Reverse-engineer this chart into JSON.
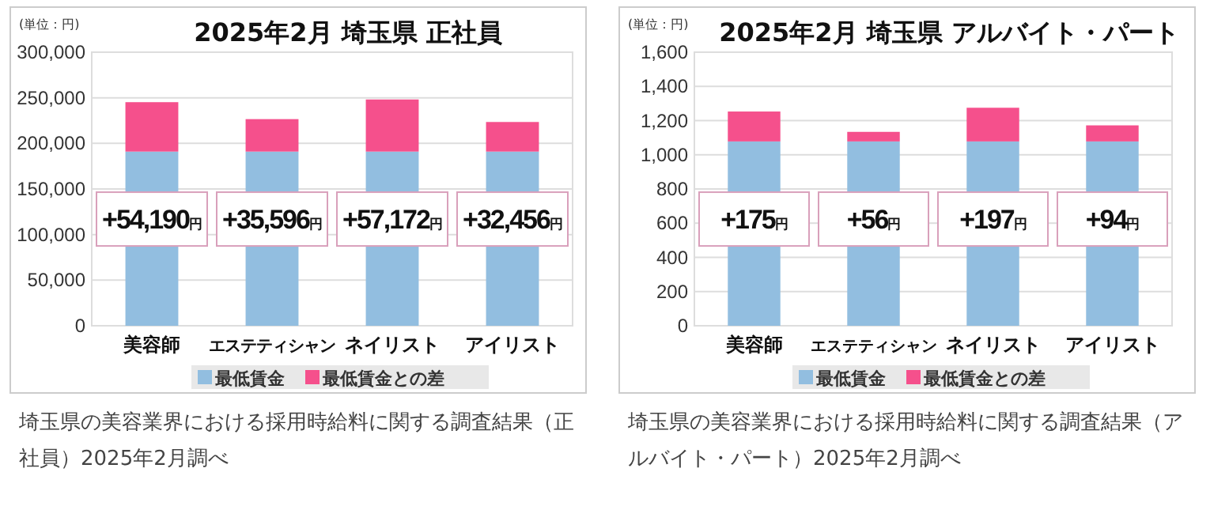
{
  "chart_data": [
    {
      "type": "bar",
      "stacked": true,
      "title": "2025年2月 埼玉県 正社員",
      "categories": [
        "美容師",
        "エステティシャン",
        "ネイリスト",
        "アイリスト"
      ],
      "ylim": [
        0,
        300000
      ],
      "yticks": [
        {
          "value": 0,
          "label": "0"
        },
        {
          "value": 50000,
          "label": "50,000"
        },
        {
          "value": 100000,
          "label": "100,000"
        },
        {
          "value": 150000,
          "label": "150,000"
        },
        {
          "value": 200000,
          "label": "200,000"
        },
        {
          "value": 250000,
          "label": "250,000"
        },
        {
          "value": 300000,
          "label": "300,000"
        }
      ],
      "grid": "y",
      "legend": "bottom",
      "series": [
        {
          "name": "最低賃金",
          "color": "#92bee0",
          "values": [
            191000,
            191000,
            191000,
            191000
          ]
        },
        {
          "name": "最低賃金との差",
          "color": "#f5508c",
          "values": [
            54190,
            35596,
            57172,
            32456
          ],
          "value_labels": [
            "+54,190円",
            "+35,596円",
            "+57,172円",
            "+32,456円"
          ]
        }
      ],
      "annotations": [
        "(単位：円)",
        "埼玉県の美容業界における採用時給料に関する調査結果（正社員）2025年2月調べ"
      ]
    },
    {
      "type": "bar",
      "stacked": true,
      "title": "2025年2月 埼玉県 アルバイト・パート",
      "categories": [
        "美容師",
        "エステティシャン",
        "ネイリスト",
        "アイリスト"
      ],
      "ylim": [
        0,
        1600
      ],
      "yticks": [
        {
          "value": 0,
          "label": "0"
        },
        {
          "value": 200,
          "label": "200"
        },
        {
          "value": 400,
          "label": "400"
        },
        {
          "value": 600,
          "label": "600"
        },
        {
          "value": 800,
          "label": "800"
        },
        {
          "value": 1000,
          "label": "1,000"
        },
        {
          "value": 1200,
          "label": "1,200"
        },
        {
          "value": 1400,
          "label": "1,400"
        },
        {
          "value": 1600,
          "label": "1,600"
        }
      ],
      "grid": "y",
      "legend": "bottom",
      "series": [
        {
          "name": "最低賃金",
          "color": "#92bee0",
          "values": [
            1078,
            1078,
            1078,
            1078
          ]
        },
        {
          "name": "最低賃金との差",
          "color": "#f5508c",
          "values": [
            175,
            56,
            197,
            94
          ],
          "value_labels": [
            "+175円",
            "+56円",
            "+197円",
            "+94円"
          ]
        }
      ],
      "annotations": [
        "(単位：円)",
        "埼玉県の美容業界における採用時給料に関する調査結果（アルバイト・パート）2025年2月調べ"
      ]
    }
  ]
}
